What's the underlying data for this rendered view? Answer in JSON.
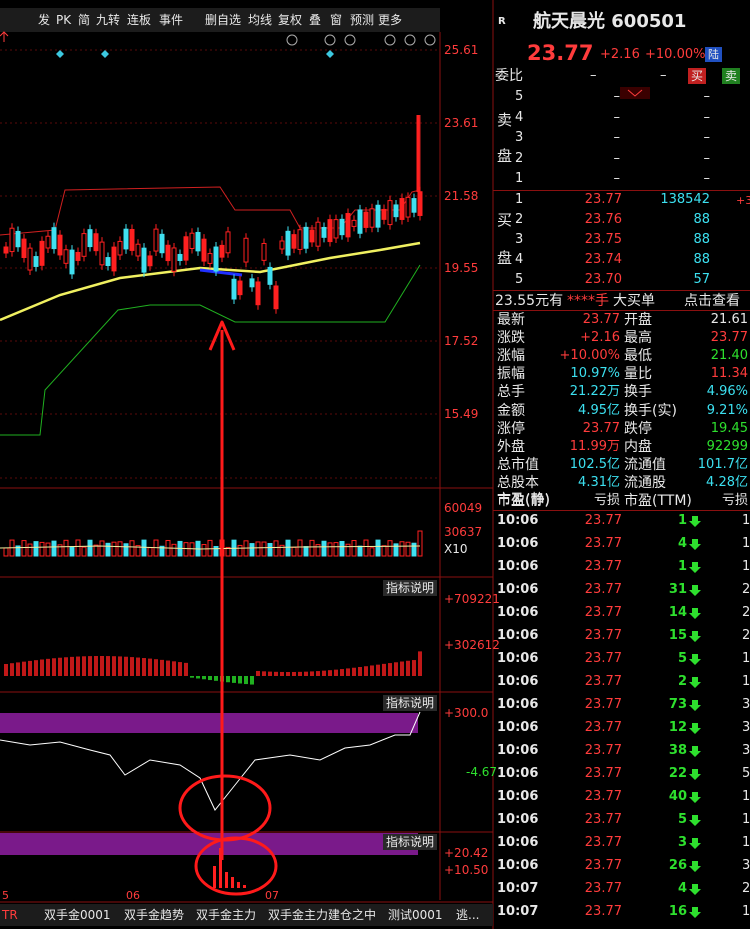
{
  "toolbar": [
    "发",
    "PK",
    "简",
    "九转",
    "连板",
    "事件",
    "删自选",
    "均线",
    "复权",
    "叠",
    "窗",
    "预测",
    "更多"
  ],
  "quote": {
    "market": "R",
    "name": "航天晨光 600501",
    "price": "23.77",
    "change": "+2.16",
    "pct": "+10.00%",
    "badge": "陆"
  },
  "order_ratio": {
    "label": "委比",
    "v1": "–",
    "v2": "–",
    "buy": "买",
    "sell": "卖"
  },
  "sell_label": [
    "卖",
    "盘"
  ],
  "buy_label": [
    "买",
    "盘"
  ],
  "asks": [
    {
      "level": "5",
      "price": "–",
      "vol": "–"
    },
    {
      "level": "4",
      "price": "–",
      "vol": "–"
    },
    {
      "level": "3",
      "price": "–",
      "vol": "–"
    },
    {
      "level": "2",
      "price": "–",
      "vol": "–"
    },
    {
      "level": "1",
      "price": "–",
      "vol": "–"
    }
  ],
  "bids": [
    {
      "level": "1",
      "price": "23.77",
      "vol": "138542",
      "extra": "+3"
    },
    {
      "level": "2",
      "price": "23.76",
      "vol": "88"
    },
    {
      "level": "3",
      "price": "23.75",
      "vol": "88"
    },
    {
      "level": "4",
      "price": "23.74",
      "vol": "88"
    },
    {
      "level": "5",
      "price": "23.70",
      "vol": "57"
    }
  ],
  "big_order": [
    "23.55元有",
    "****手",
    "大买单",
    "点击查看"
  ],
  "stats": [
    [
      "最新",
      "23.77",
      "开盘",
      "21.61"
    ],
    [
      "涨跌",
      "+2.16",
      "最高",
      "23.77"
    ],
    [
      "涨幅",
      "+10.00%",
      "最低",
      "21.40"
    ],
    [
      "振幅",
      "10.97%",
      "量比",
      "11.34"
    ],
    [
      "总手",
      "21.22万",
      "换手",
      "4.96%"
    ],
    [
      "金额",
      "4.95亿",
      "换手(实)",
      "9.21%"
    ],
    [
      "涨停",
      "23.77",
      "跌停",
      "19.45"
    ],
    [
      "外盘",
      "11.99万",
      "内盘",
      "92299"
    ],
    [
      "总市值",
      "102.5亿",
      "流通值",
      "101.7亿"
    ],
    [
      "总股本",
      "4.31亿",
      "流通股",
      "4.28亿"
    ],
    [
      "市盈(静)",
      "亏损",
      "市盈(TTM)",
      "亏损"
    ]
  ],
  "ticks": [
    [
      "10:06",
      "23.77",
      "1",
      "1"
    ],
    [
      "10:06",
      "23.77",
      "4",
      "1"
    ],
    [
      "10:06",
      "23.77",
      "1",
      "1"
    ],
    [
      "10:06",
      "23.77",
      "31",
      "2"
    ],
    [
      "10:06",
      "23.77",
      "14",
      "2"
    ],
    [
      "10:06",
      "23.77",
      "15",
      "2"
    ],
    [
      "10:06",
      "23.77",
      "5",
      "1"
    ],
    [
      "10:06",
      "23.77",
      "2",
      "1"
    ],
    [
      "10:06",
      "23.77",
      "73",
      "3"
    ],
    [
      "10:06",
      "23.77",
      "12",
      "3"
    ],
    [
      "10:06",
      "23.77",
      "38",
      "3"
    ],
    [
      "10:06",
      "23.77",
      "22",
      "5"
    ],
    [
      "10:06",
      "23.77",
      "40",
      "1"
    ],
    [
      "10:06",
      "23.77",
      "5",
      "1"
    ],
    [
      "10:06",
      "23.77",
      "3",
      "1"
    ],
    [
      "10:06",
      "23.77",
      "26",
      "3"
    ],
    [
      "10:07",
      "23.77",
      "4",
      "2"
    ],
    [
      "10:07",
      "23.77",
      "16",
      "1"
    ]
  ],
  "chart": {
    "price_labels": [
      "25.61",
      "23.61",
      "21.58",
      "19.55",
      "17.52",
      "15.49"
    ],
    "volume_labels": [
      "60049",
      "30637",
      "X10"
    ],
    "macd": {
      "button": "指标说明",
      "labels": [
        "+709221",
        "+302612"
      ]
    },
    "osc": {
      "button": "指标说明",
      "labels": [
        "+300.0",
        "-4.67"
      ]
    },
    "sub": {
      "button": "指标说明",
      "labels": [
        "+20.42",
        "+10.50"
      ]
    },
    "dates": [
      "5",
      "06",
      "07"
    ]
  },
  "tabs": [
    "TR",
    "双手金0001",
    "双手金趋势",
    "双手金主力",
    "双手金主力建仓之中",
    "测试0001",
    "逃..."
  ]
}
